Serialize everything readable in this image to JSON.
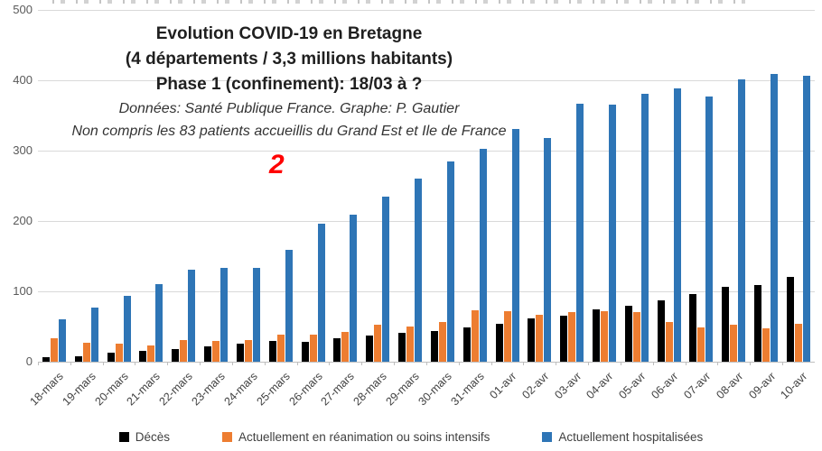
{
  "header": {
    "title_line1": "Evolution COVID-19 en Bretagne",
    "title_line2": "(4 départements / 3,3 millions habitants)",
    "title_line3": "Phase 1 (confinement): 18/03 à ?",
    "note_line1": "Données: Santé Publique France. Graphe: P. Gautier",
    "note_line2": "Non compris les 83 patients accueillis du Grand Est et Ile de France",
    "annotation": "2",
    "annotation_color": "#FF0000"
  },
  "chart_data": {
    "type": "bar",
    "title": "Evolution COVID-19 en Bretagne (4 départements / 3,3 millions habitants) Phase 1 (confinement): 18/03 à ?",
    "xlabel": "",
    "ylabel": "",
    "ylim": [
      0,
      500
    ],
    "yticks": [
      0,
      100,
      200,
      300,
      400,
      500
    ],
    "grid": true,
    "legend_position": "bottom",
    "categories": [
      "18-mars",
      "19-mars",
      "20-mars",
      "21-mars",
      "22-mars",
      "23-mars",
      "24-mars",
      "25-mars",
      "26-mars",
      "27-mars",
      "28-mars",
      "29-mars",
      "30-mars",
      "31-mars",
      "01-avr",
      "02-avr",
      "03-avr",
      "04-avr",
      "05-avr",
      "06-avr",
      "07-avr",
      "08-avr",
      "09-avr",
      "10-avr"
    ],
    "series": [
      {
        "key": "deces",
        "name": "Décès",
        "color": "#000000",
        "values": [
          6,
          8,
          13,
          16,
          18,
          22,
          26,
          29,
          28,
          33,
          37,
          41,
          44,
          49,
          54,
          61,
          66,
          74,
          80,
          87,
          96,
          106,
          109,
          120
        ]
      },
      {
        "key": "reanimation",
        "name": "Actuellement en réanimation ou soins intensifs",
        "color": "#ED7D31",
        "values": [
          33,
          27,
          26,
          23,
          31,
          30,
          31,
          38,
          39,
          42,
          52,
          50,
          56,
          73,
          72,
          67,
          71,
          72,
          71,
          57,
          49,
          52,
          48,
          54
        ]
      },
      {
        "key": "hospitalisees",
        "name": "Actuellement hospitalisées",
        "color": "#2E75B6",
        "values": [
          60,
          77,
          93,
          110,
          131,
          133,
          133,
          159,
          196,
          209,
          235,
          260,
          285,
          303,
          331,
          318,
          367,
          365,
          381,
          388,
          377,
          401,
          409,
          406
        ]
      }
    ]
  }
}
